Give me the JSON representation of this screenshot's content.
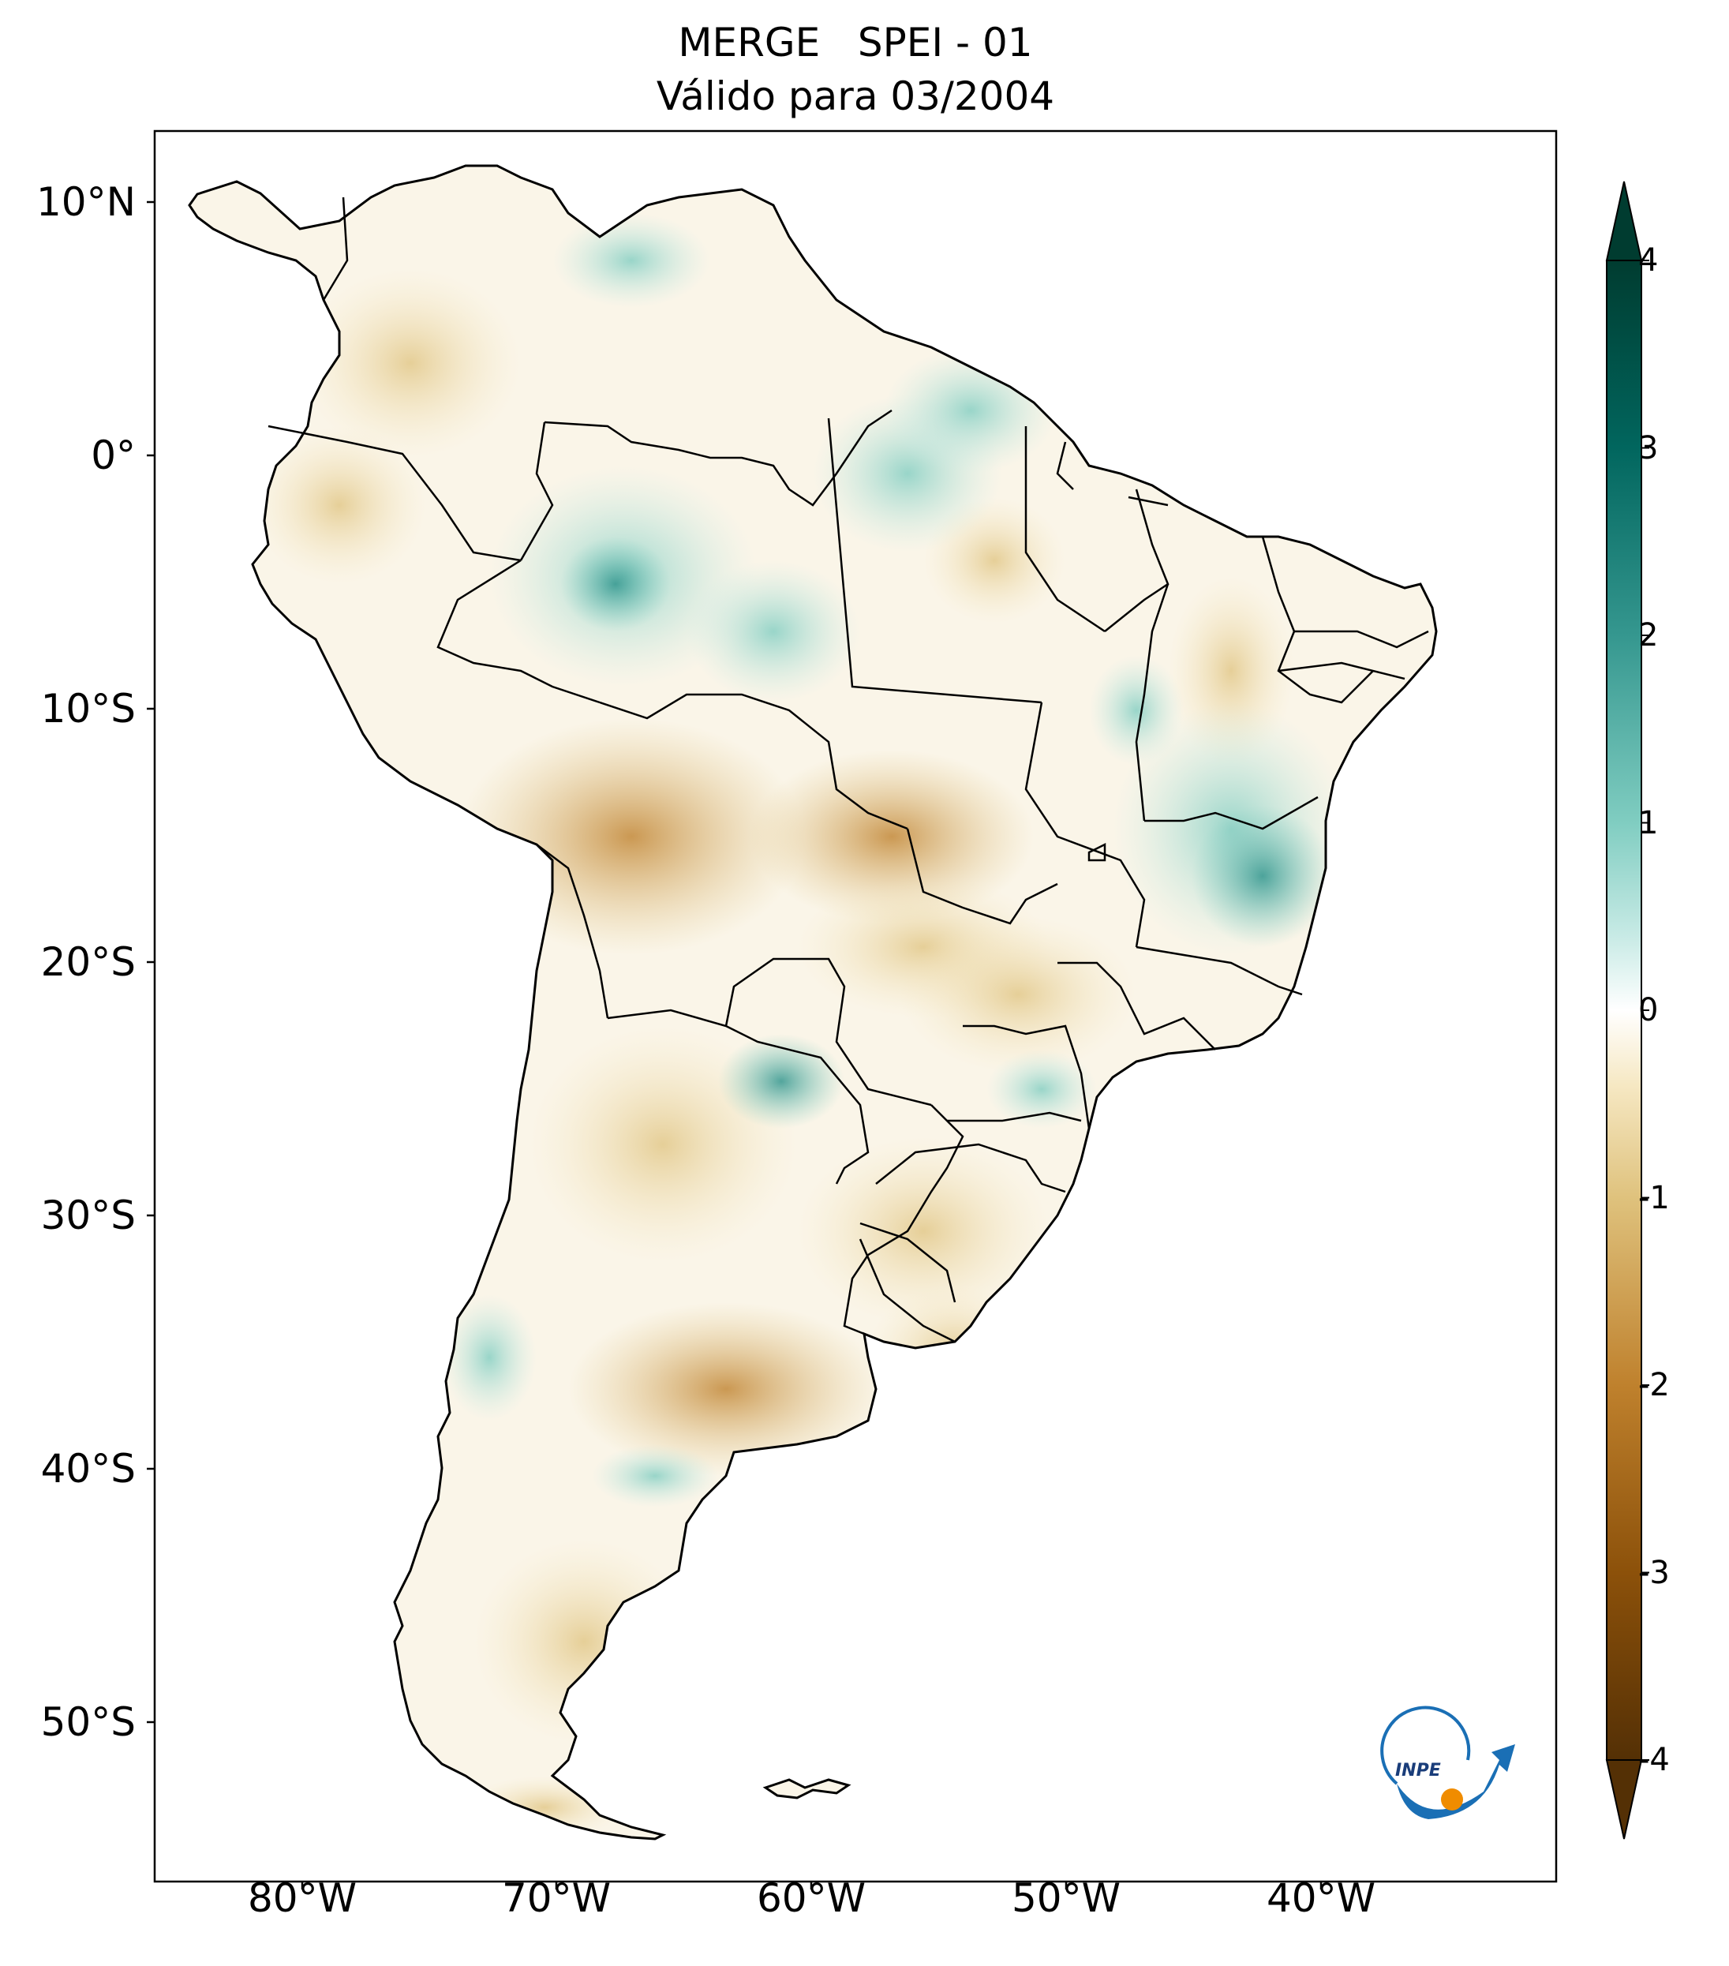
{
  "title": {
    "line1": "MERGE   SPEI - 01",
    "line2": "Válido para 03/2004"
  },
  "map": {
    "type": "choropleth-raster",
    "region": "South America",
    "variable": "SPEI - 01",
    "lat_ticks": [
      "10°N",
      "0°",
      "10°S",
      "20°S",
      "30°S",
      "40°S",
      "50°S"
    ],
    "lon_ticks": [
      "80°W",
      "70°W",
      "60°W",
      "50°W",
      "40°W"
    ],
    "lon_range": [
      -85,
      -30
    ],
    "lat_range": [
      -56,
      12.5
    ],
    "colormap": "BrBG",
    "colors": {
      "strong_dry": "#543005",
      "dry": "#bf812d",
      "mild_dry": "#f0dfb4",
      "neutral": "#ffffff",
      "mild_wet": "#bfe6de",
      "wet": "#35978f",
      "strong_wet": "#003c30"
    },
    "logo_text": "INPE"
  },
  "colorbar": {
    "ticks": [
      "4",
      "3",
      "2",
      "1",
      "0",
      "-1",
      "-2",
      "-3",
      "-4"
    ],
    "range": [
      -4,
      4
    ],
    "extend": "both"
  }
}
